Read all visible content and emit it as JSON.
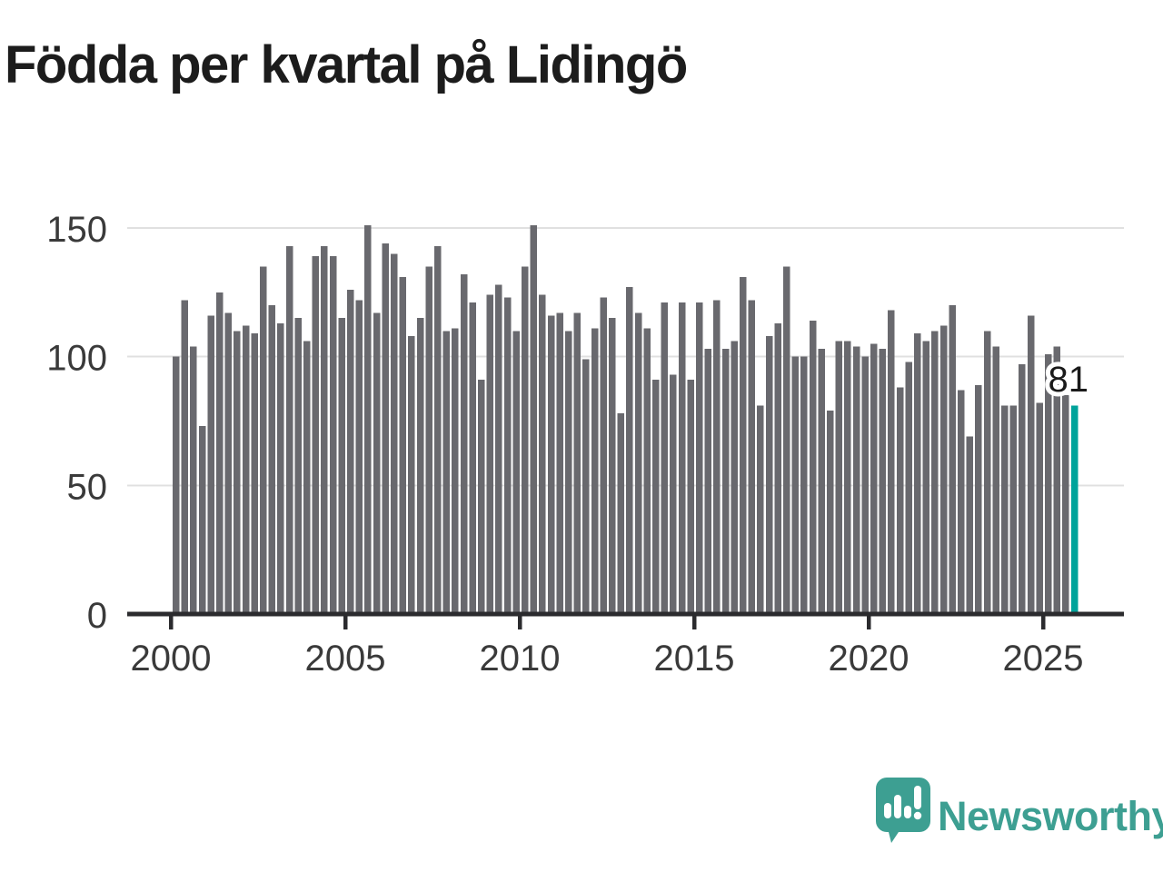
{
  "header": {
    "title": "Födda per kvartal på Lidingö"
  },
  "chart_data": {
    "type": "bar",
    "title": "Födda per kvartal på Lidingö",
    "grid": "horizontal",
    "ylim": [
      0,
      155
    ],
    "yticks": [
      {
        "value": 0,
        "label": "0"
      },
      {
        "value": 50,
        "label": "50"
      },
      {
        "value": 100,
        "label": "100"
      },
      {
        "value": 150,
        "label": "150"
      }
    ],
    "xticks": [
      {
        "year": 2000,
        "label": "2000"
      },
      {
        "year": 2005,
        "label": "2005"
      },
      {
        "year": 2010,
        "label": "2010"
      },
      {
        "year": 2015,
        "label": "2015"
      },
      {
        "year": 2020,
        "label": "2020"
      },
      {
        "year": 2025,
        "label": "2025"
      }
    ],
    "categories": [
      "2000Q1",
      "2000Q2",
      "2000Q3",
      "2000Q4",
      "2001Q1",
      "2001Q2",
      "2001Q3",
      "2001Q4",
      "2002Q1",
      "2002Q2",
      "2002Q3",
      "2002Q4",
      "2003Q1",
      "2003Q2",
      "2003Q3",
      "2003Q4",
      "2004Q1",
      "2004Q2",
      "2004Q3",
      "2004Q4",
      "2005Q1",
      "2005Q2",
      "2005Q3",
      "2005Q4",
      "2006Q1",
      "2006Q2",
      "2006Q3",
      "2006Q4",
      "2007Q1",
      "2007Q2",
      "2007Q3",
      "2007Q4",
      "2008Q1",
      "2008Q2",
      "2008Q3",
      "2008Q4",
      "2009Q1",
      "2009Q2",
      "2009Q3",
      "2009Q4",
      "2010Q1",
      "2010Q2",
      "2010Q3",
      "2010Q4",
      "2011Q1",
      "2011Q2",
      "2011Q3",
      "2011Q4",
      "2012Q1",
      "2012Q2",
      "2012Q3",
      "2012Q4",
      "2013Q1",
      "2013Q2",
      "2013Q3",
      "2013Q4",
      "2014Q1",
      "2014Q2",
      "2014Q3",
      "2014Q4",
      "2015Q1",
      "2015Q2",
      "2015Q3",
      "2015Q4",
      "2016Q1",
      "2016Q2",
      "2016Q3",
      "2016Q4",
      "2017Q1",
      "2017Q2",
      "2017Q3",
      "2017Q4",
      "2018Q1",
      "2018Q2",
      "2018Q3",
      "2018Q4",
      "2019Q1",
      "2019Q2",
      "2019Q3",
      "2019Q4",
      "2020Q1",
      "2020Q2",
      "2020Q3",
      "2020Q4",
      "2021Q1",
      "2021Q2",
      "2021Q3",
      "2021Q4",
      "2022Q1",
      "2022Q2",
      "2022Q3",
      "2022Q4",
      "2023Q1",
      "2023Q2",
      "2023Q3",
      "2023Q4",
      "2024Q1",
      "2024Q2",
      "2024Q3",
      "2024Q4",
      "2025Q1",
      "2025Q2",
      "2025Q3",
      "2025Q4"
    ],
    "values": [
      100,
      122,
      104,
      73,
      116,
      125,
      117,
      110,
      112,
      109,
      135,
      120,
      113,
      143,
      115,
      106,
      139,
      143,
      139,
      115,
      126,
      122,
      151,
      117,
      144,
      140,
      131,
      108,
      115,
      135,
      143,
      110,
      111,
      132,
      121,
      91,
      124,
      128,
      123,
      110,
      135,
      151,
      124,
      116,
      117,
      110,
      117,
      99,
      111,
      123,
      115,
      78,
      127,
      117,
      111,
      91,
      121,
      93,
      121,
      91,
      121,
      103,
      122,
      103,
      106,
      131,
      122,
      81,
      108,
      113,
      135,
      100,
      100,
      114,
      103,
      79,
      106,
      106,
      104,
      100,
      105,
      103,
      118,
      88,
      98,
      109,
      106,
      110,
      112,
      120,
      87,
      69,
      89,
      110,
      104,
      81,
      81,
      97,
      116,
      82,
      101,
      104,
      85,
      81
    ],
    "highlight_last": true,
    "annotation": {
      "text": "81",
      "value": 81,
      "category": "2025Q4"
    },
    "colors": {
      "bar": "#69696e",
      "highlight": "#00a39b",
      "axis": "#2b2b2e",
      "grid": "#e0e0e0",
      "tick_label": "#3a3a3a",
      "annotation_text": "#1a1a1a",
      "annotation_halo": "#ffffff"
    }
  },
  "footer": {
    "logo": {
      "text": "Newsworthy",
      "color": "#3d9f92",
      "icon": "newsworthy-speech-bubble-bar-chart-icon"
    }
  }
}
